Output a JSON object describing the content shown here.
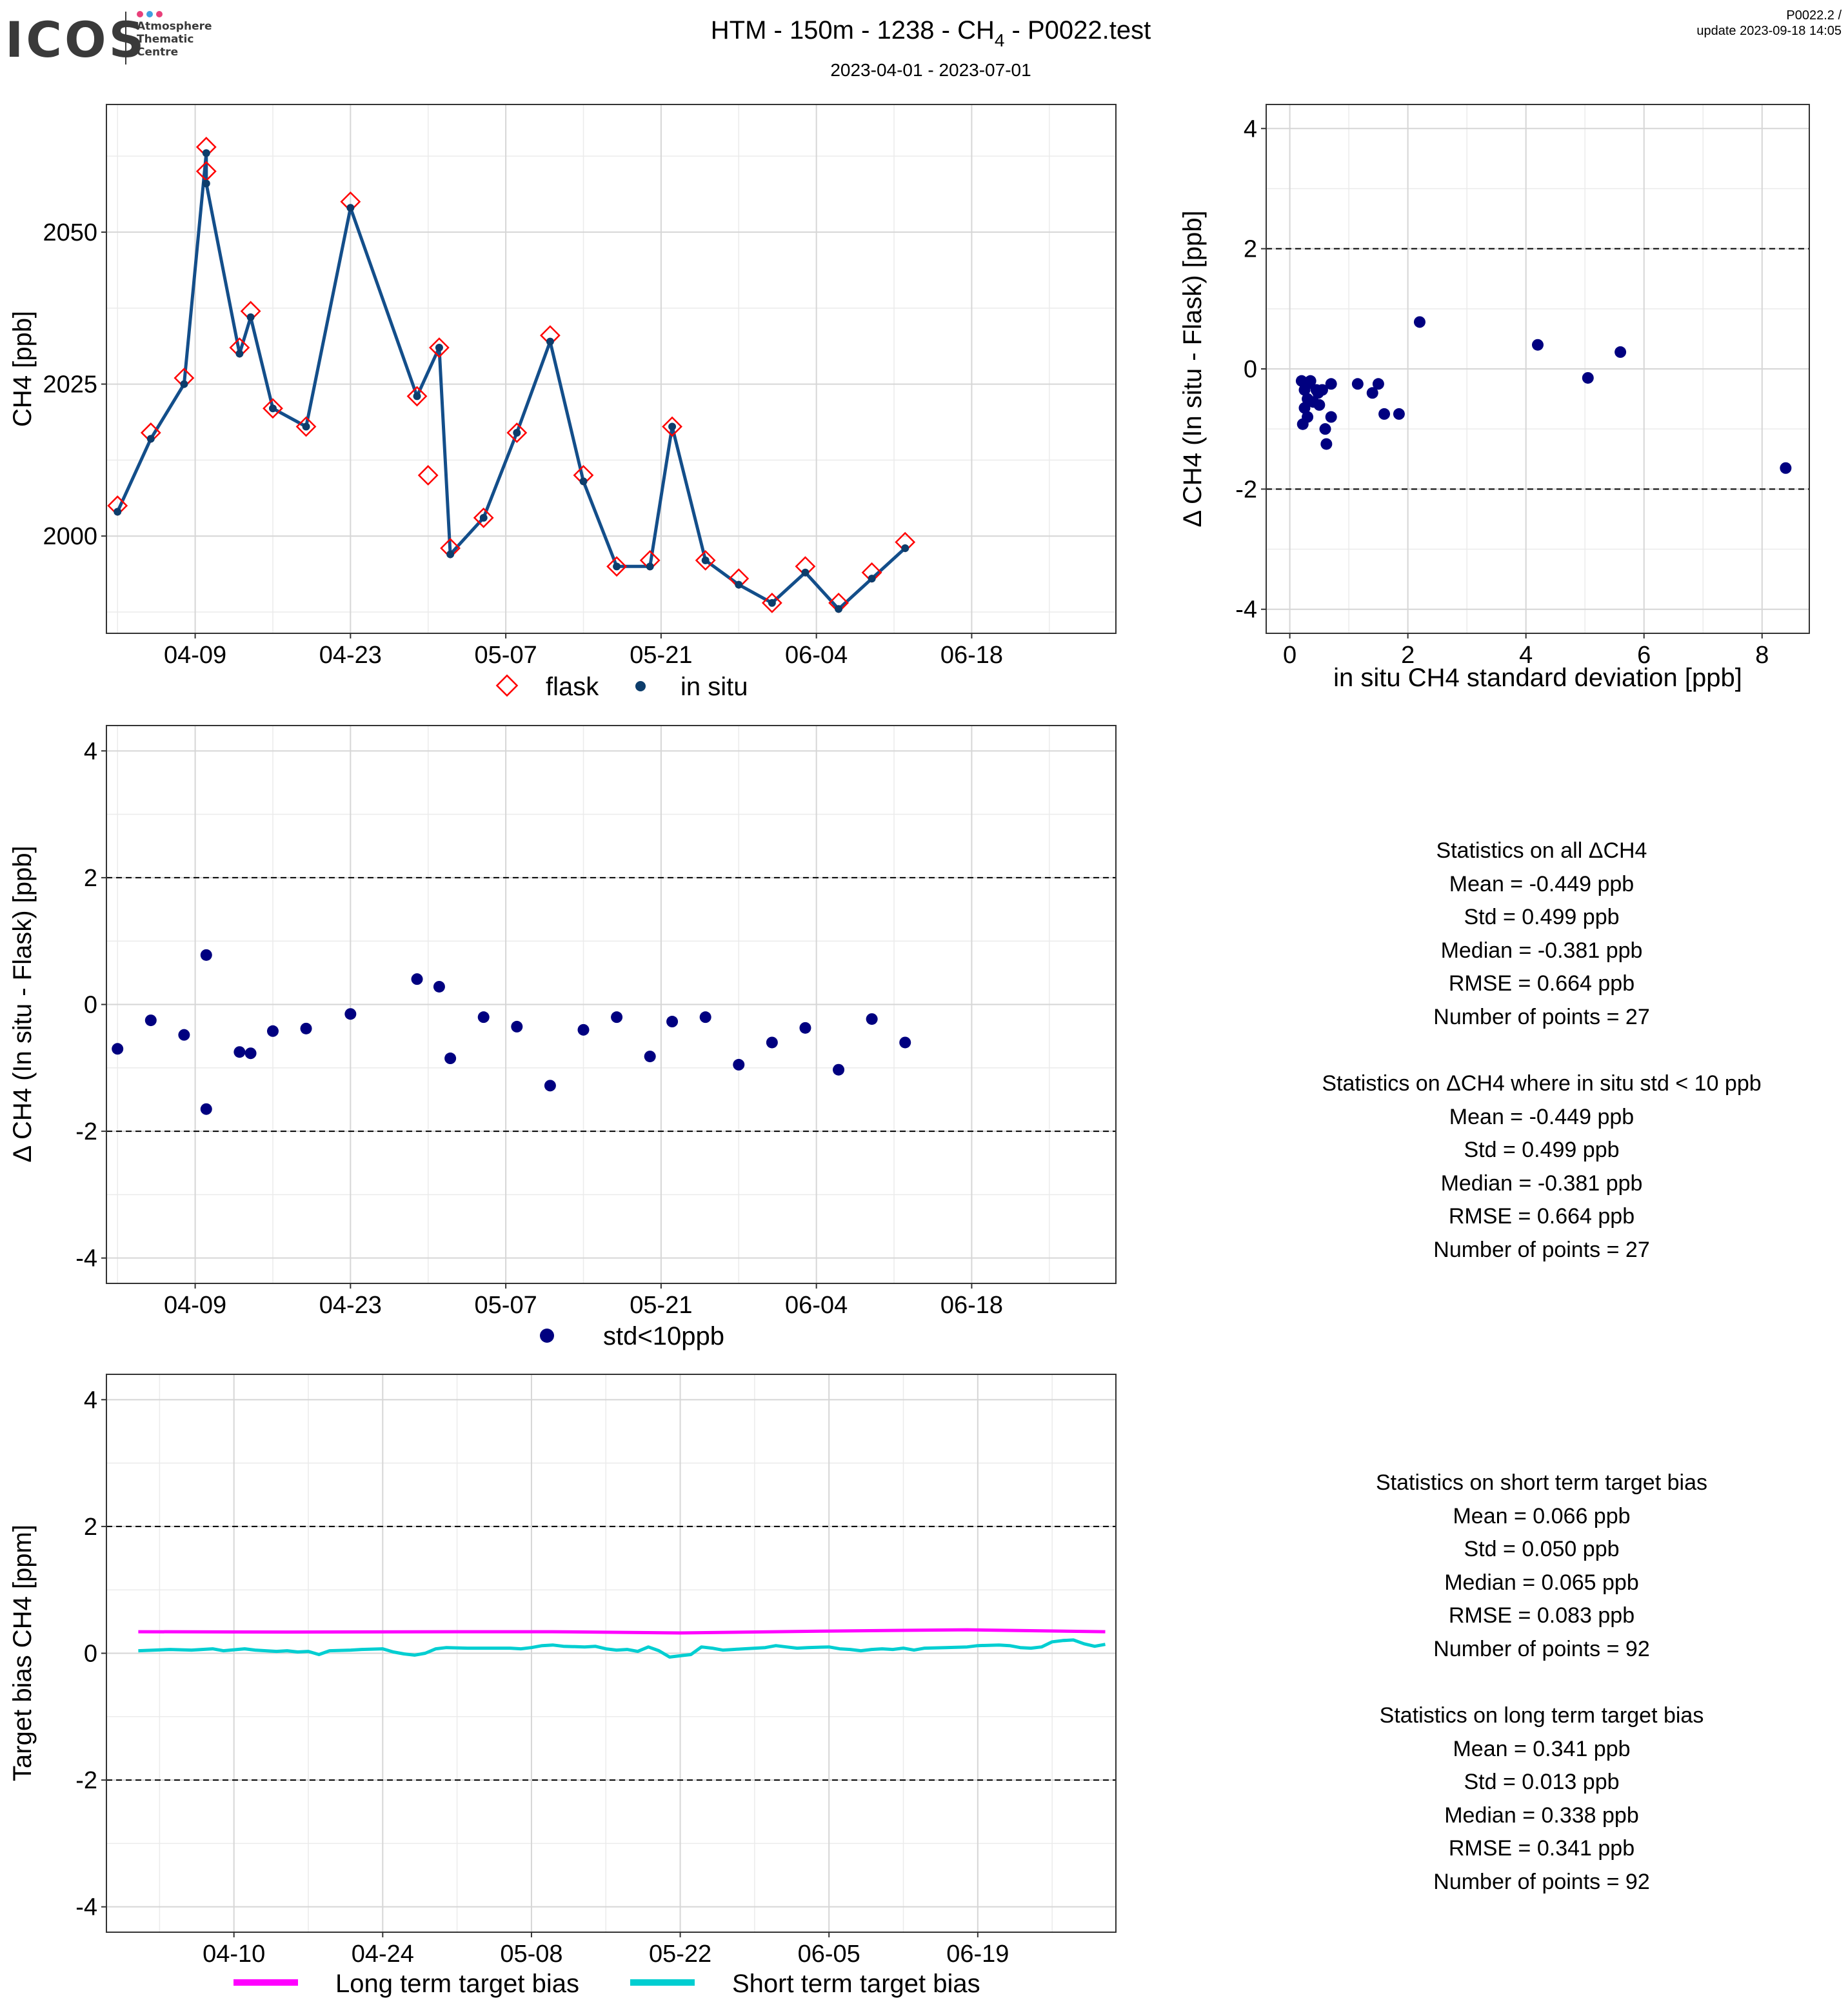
{
  "header": {
    "logo_text": "ICOS",
    "logo_sub": [
      "Atmosphere",
      "Thematic",
      "Centre"
    ],
    "title_main": "HTM - 150m - 1238 - CH",
    "title_sub": "4",
    "title_end": " - P0022.test",
    "date_range": "2023-04-01 - 2023-07-01",
    "version": "P0022.2 /",
    "update": "update  2023-09-18 14:05"
  },
  "colors": {
    "flask": "#ff0000",
    "insitu_line": "#134e8a",
    "insitu_point": "#0d3d6b",
    "delta_point": "#000080",
    "long_term": "#ff00ff",
    "short_term": "#00ced1"
  },
  "legends": {
    "top": [
      "flask",
      "in situ"
    ],
    "middle": [
      "std<10ppb"
    ],
    "bottom": [
      "Long term target bias",
      "Short term target bias"
    ]
  },
  "chart_data": [
    {
      "id": "ch4-timeseries",
      "type": "line",
      "ylabel": "CH4 [ppb]",
      "xlim": [
        "2023-04-01",
        "2023-07-01"
      ],
      "ylim": [
        1984,
        2071
      ],
      "xticks": [
        {
          "date": "2023-04-09",
          "label": "04-09"
        },
        {
          "date": "2023-04-23",
          "label": "04-23"
        },
        {
          "date": "2023-05-07",
          "label": "05-07"
        },
        {
          "date": "2023-05-21",
          "label": "05-21"
        },
        {
          "date": "2023-06-04",
          "label": "06-04"
        },
        {
          "date": "2023-06-18",
          "label": "06-18"
        }
      ],
      "yticks": [
        2000,
        2025,
        2050
      ],
      "series": [
        {
          "name": "flask",
          "marker": "diamond",
          "points": [
            [
              "2023-04-02",
              2005
            ],
            [
              "2023-04-05",
              2017
            ],
            [
              "2023-04-08",
              2026
            ],
            [
              "2023-04-10",
              2064
            ],
            [
              "2023-04-10",
              2060
            ],
            [
              "2023-04-13",
              2031
            ],
            [
              "2023-04-14",
              2037
            ],
            [
              "2023-04-16",
              2021
            ],
            [
              "2023-04-19",
              2018
            ],
            [
              "2023-04-23",
              2055
            ],
            [
              "2023-04-29",
              2023
            ],
            [
              "2023-04-30",
              2010
            ],
            [
              "2023-05-01",
              2031
            ],
            [
              "2023-05-02",
              1998
            ],
            [
              "2023-05-05",
              2003
            ],
            [
              "2023-05-08",
              2017
            ],
            [
              "2023-05-11",
              2033
            ],
            [
              "2023-05-14",
              2010
            ],
            [
              "2023-05-17",
              1995
            ],
            [
              "2023-05-20",
              1996
            ],
            [
              "2023-05-22",
              2018
            ],
            [
              "2023-05-25",
              1996
            ],
            [
              "2023-05-28",
              1993
            ],
            [
              "2023-05-31",
              1989
            ],
            [
              "2023-06-03",
              1995
            ],
            [
              "2023-06-06",
              1989
            ],
            [
              "2023-06-09",
              1994
            ],
            [
              "2023-06-12",
              1999
            ]
          ]
        },
        {
          "name": "in situ",
          "marker": "point",
          "points": [
            [
              "2023-04-02",
              2004
            ],
            [
              "2023-04-05",
              2016
            ],
            [
              "2023-04-08",
              2025
            ],
            [
              "2023-04-10",
              2063
            ],
            [
              "2023-04-10",
              2058
            ],
            [
              "2023-04-13",
              2030
            ],
            [
              "2023-04-14",
              2036
            ],
            [
              "2023-04-16",
              2021
            ],
            [
              "2023-04-19",
              2018
            ],
            [
              "2023-04-23",
              2054
            ],
            [
              "2023-04-29",
              2023
            ],
            [
              "2023-05-01",
              2031
            ],
            [
              "2023-05-02",
              1997
            ],
            [
              "2023-05-05",
              2003
            ],
            [
              "2023-05-08",
              2017
            ],
            [
              "2023-05-11",
              2032
            ],
            [
              "2023-05-14",
              2009
            ],
            [
              "2023-05-17",
              1995
            ],
            [
              "2023-05-20",
              1995
            ],
            [
              "2023-05-22",
              2018
            ],
            [
              "2023-05-25",
              1996
            ],
            [
              "2023-05-28",
              1992
            ],
            [
              "2023-05-31",
              1989
            ],
            [
              "2023-06-03",
              1994
            ],
            [
              "2023-06-06",
              1988
            ],
            [
              "2023-06-09",
              1993
            ],
            [
              "2023-06-12",
              1998
            ]
          ]
        }
      ]
    },
    {
      "id": "delta-vs-std",
      "type": "scatter",
      "xlabel": "in situ CH4 standard deviation [ppb]",
      "ylabel": "Δ CH4 (In situ - Flask) [ppb]",
      "xlim": [
        -0.4,
        8.8
      ],
      "ylim": [
        -4.4,
        4.4
      ],
      "xticks": [
        0,
        2,
        4,
        6,
        8
      ],
      "yticks": [
        -4,
        -2,
        0,
        2,
        4
      ],
      "hlines": [
        -2,
        2
      ],
      "points": [
        [
          0.2,
          -0.2
        ],
        [
          0.25,
          -0.35
        ],
        [
          0.3,
          -0.5
        ],
        [
          0.25,
          -0.65
        ],
        [
          0.3,
          -0.8
        ],
        [
          0.22,
          -0.92
        ],
        [
          0.35,
          -0.2
        ],
        [
          0.4,
          -0.55
        ],
        [
          0.45,
          -0.35
        ],
        [
          0.5,
          -0.6
        ],
        [
          0.55,
          -0.35
        ],
        [
          0.6,
          -1.0
        ],
        [
          0.62,
          -1.25
        ],
        [
          0.7,
          -0.8
        ],
        [
          0.7,
          -0.25
        ],
        [
          0.3,
          -0.25
        ],
        [
          0.48,
          -0.4
        ],
        [
          1.15,
          -0.25
        ],
        [
          1.4,
          -0.4
        ],
        [
          1.5,
          -0.25
        ],
        [
          1.6,
          -0.75
        ],
        [
          1.85,
          -0.75
        ],
        [
          2.2,
          0.78
        ],
        [
          4.2,
          0.4
        ],
        [
          5.05,
          -0.15
        ],
        [
          5.6,
          0.28
        ],
        [
          8.4,
          -1.65
        ]
      ]
    },
    {
      "id": "delta-timeseries",
      "type": "scatter",
      "ylabel": "Δ CH4 (In situ - Flask) [ppb]",
      "xlim": [
        "2023-04-01",
        "2023-07-01"
      ],
      "ylim": [
        -4.4,
        4.4
      ],
      "xticks": [
        {
          "date": "2023-04-09",
          "label": "04-09"
        },
        {
          "date": "2023-04-23",
          "label": "04-23"
        },
        {
          "date": "2023-05-07",
          "label": "05-07"
        },
        {
          "date": "2023-05-21",
          "label": "05-21"
        },
        {
          "date": "2023-06-04",
          "label": "06-04"
        },
        {
          "date": "2023-06-18",
          "label": "06-18"
        }
      ],
      "yticks": [
        -4,
        -2,
        0,
        2,
        4
      ],
      "hlines": [
        -2,
        2
      ],
      "series": [
        {
          "name": "std<10ppb",
          "points": [
            [
              "2023-04-02",
              -0.7
            ],
            [
              "2023-04-05",
              -0.25
            ],
            [
              "2023-04-08",
              -0.48
            ],
            [
              "2023-04-10",
              0.78
            ],
            [
              "2023-04-10",
              -1.65
            ],
            [
              "2023-04-13",
              -0.75
            ],
            [
              "2023-04-14",
              -0.77
            ],
            [
              "2023-04-16",
              -0.42
            ],
            [
              "2023-04-19",
              -0.38
            ],
            [
              "2023-04-23",
              -0.15
            ],
            [
              "2023-04-29",
              0.4
            ],
            [
              "2023-05-01",
              0.28
            ],
            [
              "2023-05-02",
              -0.85
            ],
            [
              "2023-05-05",
              -0.2
            ],
            [
              "2023-05-08",
              -0.35
            ],
            [
              "2023-05-11",
              -1.28
            ],
            [
              "2023-05-14",
              -0.4
            ],
            [
              "2023-05-17",
              -0.2
            ],
            [
              "2023-05-20",
              -0.82
            ],
            [
              "2023-05-22",
              -0.27
            ],
            [
              "2023-05-25",
              -0.2
            ],
            [
              "2023-05-28",
              -0.95
            ],
            [
              "2023-05-31",
              -0.6
            ],
            [
              "2023-06-03",
              -0.37
            ],
            [
              "2023-06-06",
              -1.03
            ],
            [
              "2023-06-09",
              -0.23
            ],
            [
              "2023-06-12",
              -0.6
            ]
          ]
        }
      ]
    },
    {
      "id": "target-bias",
      "type": "line",
      "ylabel": "Target bias CH4 [ppm]",
      "xlim": [
        "2023-03-29",
        "2023-07-02"
      ],
      "ylim": [
        -4.4,
        4.4
      ],
      "xticks": [
        {
          "date": "2023-04-10",
          "label": "04-10"
        },
        {
          "date": "2023-04-24",
          "label": "04-24"
        },
        {
          "date": "2023-05-08",
          "label": "05-08"
        },
        {
          "date": "2023-05-22",
          "label": "05-22"
        },
        {
          "date": "2023-06-05",
          "label": "06-05"
        },
        {
          "date": "2023-06-19",
          "label": "06-19"
        }
      ],
      "yticks": [
        -4,
        -2,
        0,
        2,
        4
      ],
      "hlines": [
        -2,
        2
      ],
      "series": [
        {
          "name": "Long term target bias",
          "points": [
            [
              "2023-04-01",
              0.34
            ],
            [
              "2023-04-15",
              0.335
            ],
            [
              "2023-05-01",
              0.34
            ],
            [
              "2023-05-10",
              0.34
            ],
            [
              "2023-05-22",
              0.32
            ],
            [
              "2023-06-05",
              0.35
            ],
            [
              "2023-06-18",
              0.37
            ],
            [
              "2023-07-01",
              0.34
            ]
          ]
        },
        {
          "name": "Short term target bias",
          "points": [
            [
              "2023-04-01",
              0.04
            ],
            [
              "2023-04-04",
              0.06
            ],
            [
              "2023-04-06",
              0.05
            ],
            [
              "2023-04-08",
              0.07
            ],
            [
              "2023-04-09",
              0.04
            ],
            [
              "2023-04-11",
              0.07
            ],
            [
              "2023-04-12",
              0.05
            ],
            [
              "2023-04-14",
              0.03
            ],
            [
              "2023-04-15",
              0.04
            ],
            [
              "2023-04-16",
              0.02
            ],
            [
              "2023-04-17",
              0.03
            ],
            [
              "2023-04-18",
              -0.02
            ],
            [
              "2023-04-19",
              0.04
            ],
            [
              "2023-04-21",
              0.05
            ],
            [
              "2023-04-22",
              0.06
            ],
            [
              "2023-04-24",
              0.07
            ],
            [
              "2023-04-25",
              0.02
            ],
            [
              "2023-04-26",
              -0.01
            ],
            [
              "2023-04-27",
              -0.03
            ],
            [
              "2023-04-28",
              0.0
            ],
            [
              "2023-04-29",
              0.07
            ],
            [
              "2023-04-30",
              0.09
            ],
            [
              "2023-05-02",
              0.08
            ],
            [
              "2023-05-04",
              0.08
            ],
            [
              "2023-05-06",
              0.08
            ],
            [
              "2023-05-07",
              0.07
            ],
            [
              "2023-05-08",
              0.09
            ],
            [
              "2023-05-09",
              0.12
            ],
            [
              "2023-05-10",
              0.13
            ],
            [
              "2023-05-11",
              0.11
            ],
            [
              "2023-05-13",
              0.1
            ],
            [
              "2023-05-14",
              0.11
            ],
            [
              "2023-05-15",
              0.07
            ],
            [
              "2023-05-16",
              0.05
            ],
            [
              "2023-05-17",
              0.06
            ],
            [
              "2023-05-18",
              0.03
            ],
            [
              "2023-05-19",
              0.1
            ],
            [
              "2023-05-20",
              0.04
            ],
            [
              "2023-05-21",
              -0.06
            ],
            [
              "2023-05-22",
              -0.04
            ],
            [
              "2023-05-23",
              -0.02
            ],
            [
              "2023-05-24",
              0.1
            ],
            [
              "2023-05-25",
              0.08
            ],
            [
              "2023-05-26",
              0.05
            ],
            [
              "2023-05-27",
              0.06
            ],
            [
              "2023-05-28",
              0.07
            ],
            [
              "2023-05-30",
              0.09
            ],
            [
              "2023-05-31",
              0.12
            ],
            [
              "2023-06-01",
              0.1
            ],
            [
              "2023-06-02",
              0.08
            ],
            [
              "2023-06-03",
              0.09
            ],
            [
              "2023-06-05",
              0.1
            ],
            [
              "2023-06-06",
              0.07
            ],
            [
              "2023-06-07",
              0.06
            ],
            [
              "2023-06-08",
              0.04
            ],
            [
              "2023-06-09",
              0.06
            ],
            [
              "2023-06-10",
              0.07
            ],
            [
              "2023-06-11",
              0.06
            ],
            [
              "2023-06-12",
              0.08
            ],
            [
              "2023-06-13",
              0.05
            ],
            [
              "2023-06-14",
              0.08
            ],
            [
              "2023-06-16",
              0.09
            ],
            [
              "2023-06-18",
              0.1
            ],
            [
              "2023-06-19",
              0.12
            ],
            [
              "2023-06-21",
              0.13
            ],
            [
              "2023-06-22",
              0.12
            ],
            [
              "2023-06-23",
              0.09
            ],
            [
              "2023-06-24",
              0.08
            ],
            [
              "2023-06-25",
              0.1
            ],
            [
              "2023-06-26",
              0.18
            ],
            [
              "2023-06-27",
              0.2
            ],
            [
              "2023-06-28",
              0.21
            ],
            [
              "2023-06-29",
              0.15
            ],
            [
              "2023-06-30",
              0.11
            ],
            [
              "2023-07-01",
              0.14
            ]
          ]
        }
      ]
    }
  ],
  "stats": {
    "all": {
      "heading": "Statistics on all ΔCH4",
      "mean": "Mean =  -0.449 ppb",
      "std": "Std =  0.499 ppb",
      "median": "Median =  -0.381 ppb",
      "rmse": "RMSE =  0.664 ppb",
      "count": "Number of points =  27"
    },
    "filtered": {
      "heading": "Statistics on ΔCH4 where in situ std < 10 ppb",
      "mean": "Mean =  -0.449 ppb",
      "std": "Std =  0.499 ppb",
      "median": "Median =  -0.381 ppb",
      "rmse": "RMSE =  0.664 ppb",
      "count": "Number of points =  27"
    },
    "short_term": {
      "heading": "Statistics on short term target bias",
      "mean": "Mean =  0.066 ppb",
      "std": "Std =  0.050 ppb",
      "median": "Median =  0.065 ppb",
      "rmse": "RMSE =  0.083 ppb",
      "count": "Number of points =  92"
    },
    "long_term": {
      "heading": "Statistics on long term target bias",
      "mean": "Mean =  0.341 ppb",
      "std": "Std =  0.013 ppb",
      "median": "Median =  0.338 ppb",
      "rmse": "RMSE =  0.341 ppb",
      "count": "Number of points =  92"
    }
  }
}
